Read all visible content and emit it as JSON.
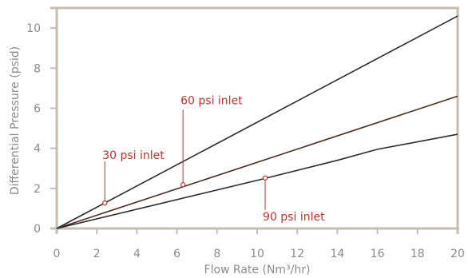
{
  "chart_data": {
    "type": "line",
    "title": "",
    "xlabel": "Flow Rate (Nm³/hr)",
    "ylabel": "Differential Pressure (psid)",
    "xlim": [
      0,
      20
    ],
    "ylim": [
      0,
      11
    ],
    "x_ticks": [
      0,
      2,
      4,
      6,
      8,
      10,
      12,
      14,
      16,
      18,
      20
    ],
    "y_ticks": [
      0,
      2,
      4,
      6,
      8,
      10
    ],
    "grid": false,
    "legend": "none",
    "series": [
      {
        "points": [
          [
            0,
            0
          ],
          [
            20,
            10.6
          ]
        ],
        "color": "#2b2b2b"
      },
      {
        "points": [
          [
            0,
            0
          ],
          [
            20,
            6.6
          ]
        ],
        "color": "#4a2e22"
      },
      {
        "points": [
          [
            0,
            0
          ],
          [
            10,
            2.4
          ],
          [
            14,
            3.4
          ],
          [
            16,
            3.95
          ],
          [
            20,
            4.7
          ]
        ],
        "color": "#2b2b2b"
      }
    ],
    "annotations": [
      {
        "text": "30 psi inlet",
        "x": 2.4,
        "y": 1.27,
        "color": "#b5342f"
      },
      {
        "text": "60 psi inlet",
        "x": 6.3,
        "y": 2.18,
        "color": "#b5342f"
      },
      {
        "text": "90 psi inlet",
        "x": 10.4,
        "y": 2.52,
        "color": "#b5342f"
      }
    ],
    "colors": {
      "axis": "#c8bcb1",
      "tick_text": "#8a8a8a",
      "annotation": "#b5342f"
    }
  }
}
